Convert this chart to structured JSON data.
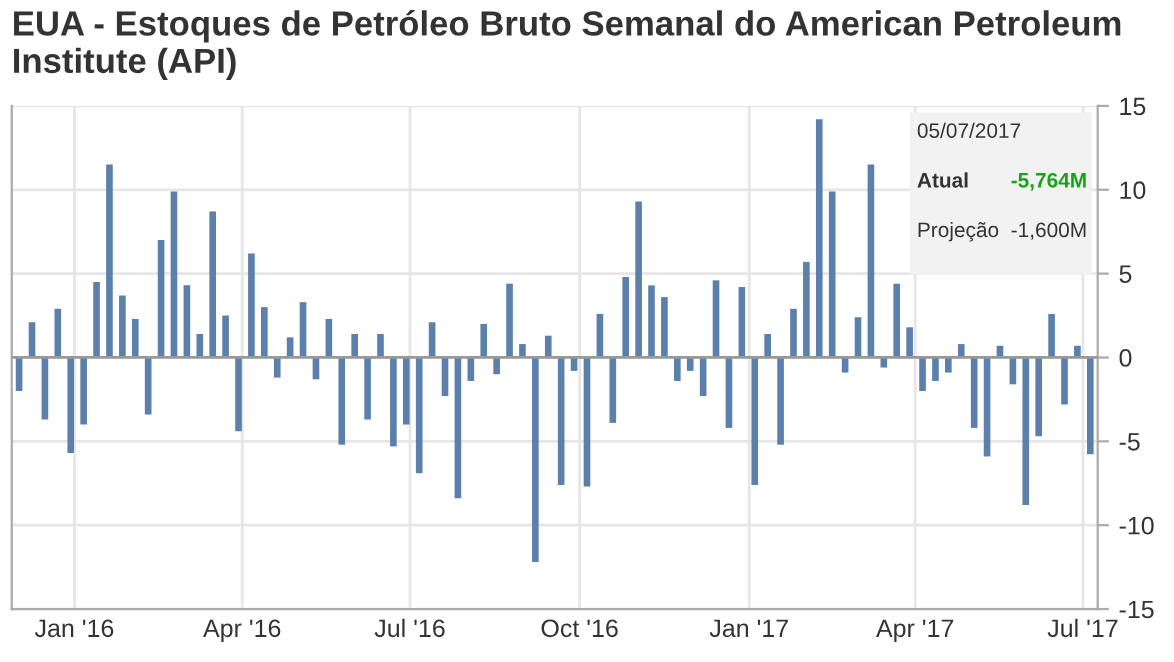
{
  "chart_data": {
    "type": "bar",
    "title": "EUA - Estoques de Petróleo Bruto Semanal do American Petroleum Institute (API)",
    "x": [
      "2015-12-02",
      "2015-12-09",
      "2015-12-16",
      "2015-12-23",
      "2015-12-30",
      "2016-01-06",
      "2016-01-13",
      "2016-01-20",
      "2016-01-27",
      "2016-02-03",
      "2016-02-10",
      "2016-02-17",
      "2016-02-24",
      "2016-03-02",
      "2016-03-09",
      "2016-03-16",
      "2016-03-23",
      "2016-03-30",
      "2016-04-06",
      "2016-04-13",
      "2016-04-20",
      "2016-04-27",
      "2016-05-04",
      "2016-05-11",
      "2016-05-18",
      "2016-05-25",
      "2016-06-01",
      "2016-06-08",
      "2016-06-15",
      "2016-06-22",
      "2016-06-29",
      "2016-07-06",
      "2016-07-13",
      "2016-07-20",
      "2016-07-27",
      "2016-08-03",
      "2016-08-10",
      "2016-08-17",
      "2016-08-24",
      "2016-08-31",
      "2016-09-07",
      "2016-09-14",
      "2016-09-21",
      "2016-09-28",
      "2016-10-05",
      "2016-10-12",
      "2016-10-19",
      "2016-10-26",
      "2016-11-02",
      "2016-11-09",
      "2016-11-16",
      "2016-11-23",
      "2016-11-30",
      "2016-12-07",
      "2016-12-14",
      "2016-12-21",
      "2016-12-28",
      "2017-01-04",
      "2017-01-11",
      "2017-01-18",
      "2017-01-25",
      "2017-02-01",
      "2017-02-08",
      "2017-02-15",
      "2017-02-22",
      "2017-03-01",
      "2017-03-08",
      "2017-03-15",
      "2017-03-22",
      "2017-03-29",
      "2017-04-05",
      "2017-04-12",
      "2017-04-19",
      "2017-04-26",
      "2017-05-03",
      "2017-05-10",
      "2017-05-17",
      "2017-05-24",
      "2017-05-31",
      "2017-06-07",
      "2017-06-14",
      "2017-06-21",
      "2017-06-28",
      "2017-07-05"
    ],
    "values": [
      -2.0,
      2.1,
      -3.7,
      2.9,
      -5.7,
      -4.0,
      4.5,
      11.5,
      3.7,
      2.3,
      -3.4,
      7.0,
      9.9,
      4.3,
      1.4,
      8.7,
      2.5,
      -4.4,
      6.2,
      3.0,
      -1.2,
      1.2,
      3.3,
      -1.3,
      2.3,
      -5.2,
      1.4,
      -3.7,
      1.4,
      -5.3,
      -4.0,
      -6.9,
      2.1,
      -2.3,
      -8.4,
      -1.4,
      2.0,
      -1.0,
      4.4,
      0.8,
      -12.2,
      1.3,
      -7.6,
      -0.8,
      -7.7,
      2.6,
      -3.9,
      4.8,
      9.3,
      4.3,
      3.6,
      -1.4,
      -0.8,
      -2.3,
      4.6,
      -4.2,
      4.2,
      -7.6,
      1.4,
      -5.2,
      2.9,
      5.7,
      14.2,
      9.9,
      -0.9,
      2.4,
      11.5,
      -0.6,
      4.4,
      1.8,
      -2.0,
      -1.4,
      -0.9,
      0.8,
      -4.2,
      -5.9,
      0.7,
      -1.6,
      -8.8,
      -4.7,
      2.6,
      -2.8,
      0.7,
      -5.764
    ],
    "color": "#5b80ab",
    "xlim": [
      "2015-11-28",
      "2017-07-09"
    ],
    "xticks": [
      {
        "value": "2016-01-01",
        "label": "Jan '16"
      },
      {
        "value": "2016-04-01",
        "label": "Apr '16"
      },
      {
        "value": "2016-07-01",
        "label": "Jul '16"
      },
      {
        "value": "2016-10-01",
        "label": "Oct '16"
      },
      {
        "value": "2017-01-01",
        "label": "Jan '17"
      },
      {
        "value": "2017-04-01",
        "label": "Apr '17"
      },
      {
        "value": "2017-07-01",
        "label": "Jul '17"
      }
    ],
    "ylim": [
      -15,
      15
    ],
    "yticks": [
      -15,
      -10,
      -5,
      0,
      5,
      10,
      15
    ],
    "grid": true,
    "annotations": [
      "05/07/2017",
      "Atual",
      "-5,764M",
      "Projeção",
      "-1,600M"
    ]
  }
}
